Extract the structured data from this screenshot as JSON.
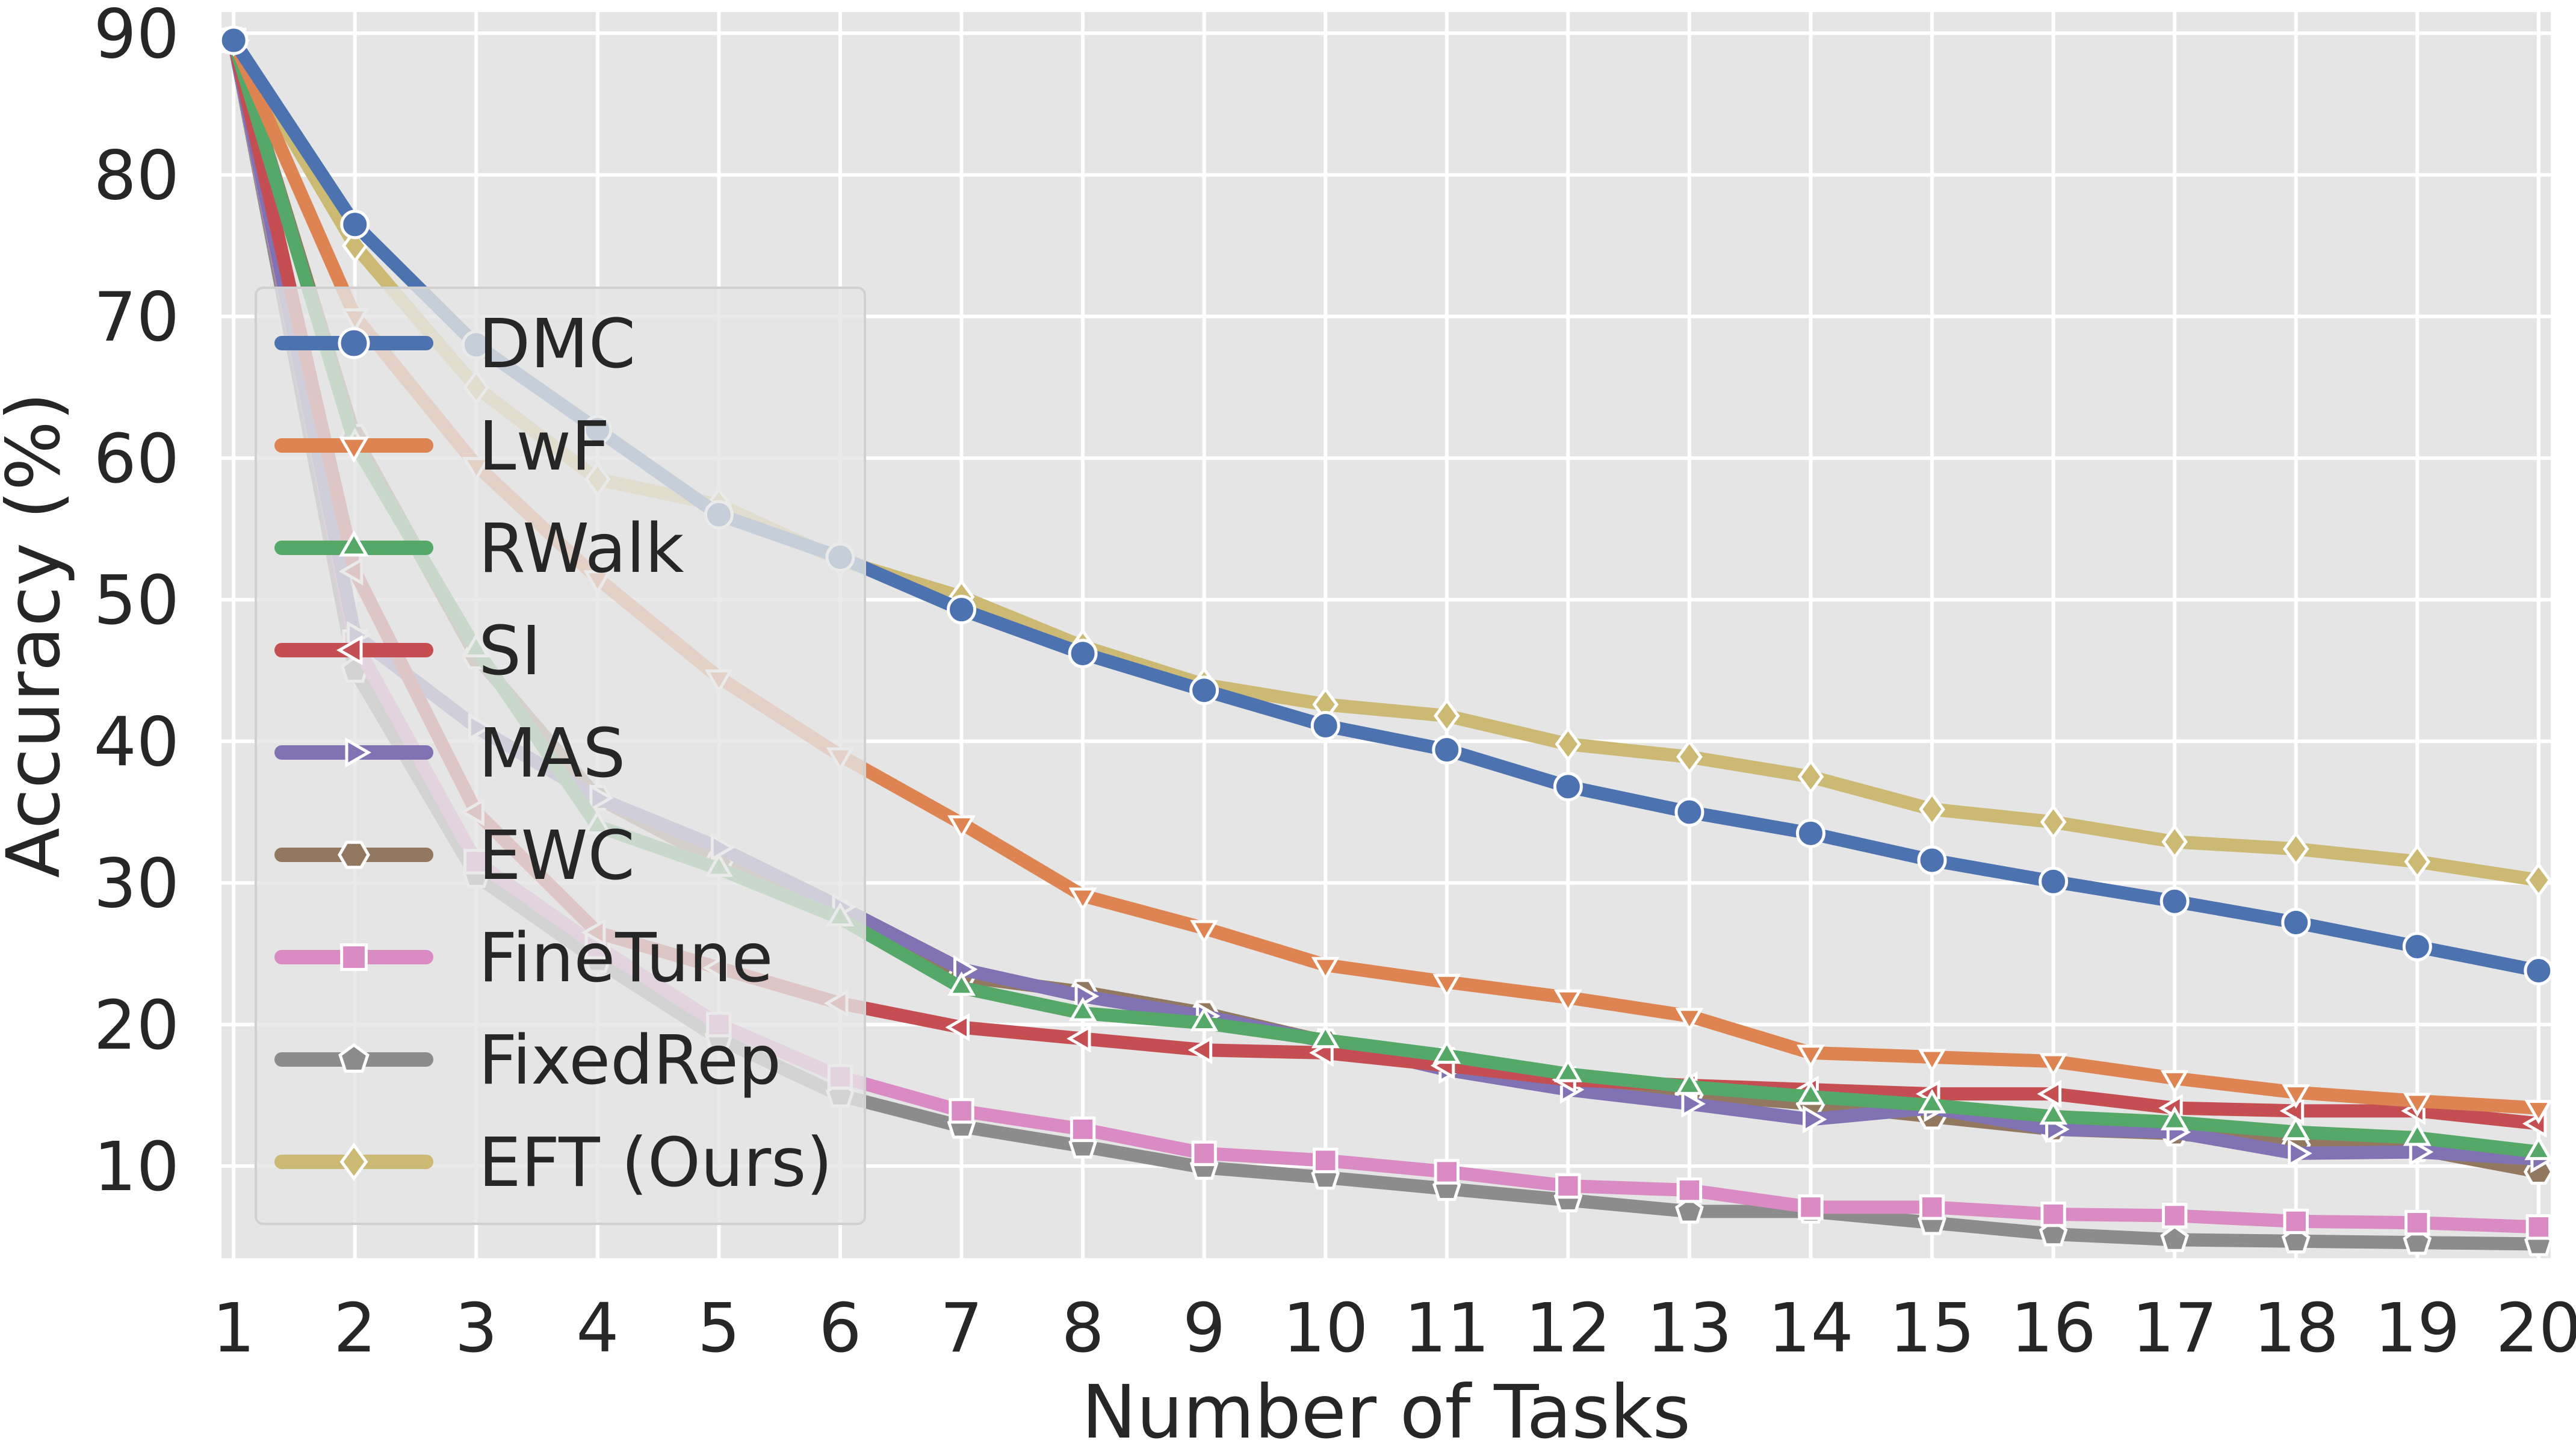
{
  "chart_data": {
    "type": "line",
    "title": "",
    "xlabel": "Number of Tasks",
    "ylabel": "Accuracy (%)",
    "x": [
      1,
      2,
      3,
      4,
      5,
      6,
      7,
      8,
      9,
      10,
      11,
      12,
      13,
      14,
      15,
      16,
      17,
      18,
      19,
      20
    ],
    "xlim": [
      0.9,
      20.1
    ],
    "ylim": [
      3.5,
      91.5
    ],
    "yticks": [
      10,
      20,
      30,
      40,
      50,
      60,
      70,
      80,
      90
    ],
    "grid": true,
    "legend_position": "left",
    "series": [
      {
        "name": "DMC",
        "color": "#4c72b0",
        "marker": "circle",
        "values": [
          89.5,
          76.5,
          68.0,
          62.0,
          56.0,
          53.0,
          49.3,
          46.2,
          43.6,
          41.1,
          39.4,
          36.8,
          35.0,
          33.5,
          31.6,
          30.1,
          28.7,
          27.2,
          25.5,
          23.8
        ]
      },
      {
        "name": "LwF",
        "color": "#dd8452",
        "marker": "triangle-down",
        "values": [
          89.5,
          70.0,
          59.5,
          51.5,
          44.5,
          39.0,
          34.2,
          29.1,
          26.8,
          24.2,
          23.0,
          21.9,
          20.6,
          18.0,
          17.7,
          17.4,
          16.2,
          15.2,
          14.6,
          14.1
        ]
      },
      {
        "name": "RWalk",
        "color": "#55a868",
        "marker": "triangle-up",
        "values": [
          89.5,
          61.0,
          46.5,
          34.0,
          31.0,
          27.5,
          22.6,
          20.8,
          20.1,
          18.9,
          17.8,
          16.5,
          15.6,
          14.9,
          14.3,
          13.5,
          13.1,
          12.4,
          12.0,
          11.0
        ]
      },
      {
        "name": "SI",
        "color": "#c44e52",
        "marker": "triangle-left",
        "values": [
          89.5,
          52.0,
          35.0,
          26.5,
          24.0,
          21.5,
          19.8,
          19.0,
          18.2,
          18.0,
          17.1,
          16.1,
          15.7,
          15.4,
          15.1,
          15.1,
          14.1,
          13.9,
          13.9,
          13.0
        ]
      },
      {
        "name": "MAS",
        "color": "#8172b3",
        "marker": "triangle-right",
        "values": [
          89.5,
          47.5,
          41.0,
          36.0,
          32.5,
          28.3,
          23.9,
          22.0,
          20.6,
          18.8,
          16.8,
          15.4,
          14.4,
          13.3,
          14.1,
          12.6,
          12.4,
          10.9,
          11.0,
          10.5
        ]
      },
      {
        "name": "EWC",
        "color": "#937860",
        "marker": "hexagon",
        "values": [
          89.5,
          61.5,
          46.0,
          36.0,
          31.5,
          27.9,
          23.4,
          22.3,
          20.8,
          18.8,
          17.5,
          16.1,
          15.1,
          14.4,
          13.5,
          12.6,
          12.3,
          11.5,
          11.2,
          9.6
        ]
      },
      {
        "name": "FineTune",
        "color": "#da8bc3",
        "marker": "square",
        "values": [
          89.5,
          47.0,
          31.5,
          25.5,
          20.0,
          16.3,
          13.9,
          12.6,
          10.9,
          10.4,
          9.6,
          8.6,
          8.3,
          7.1,
          7.1,
          6.6,
          6.5,
          6.1,
          6.0,
          5.7
        ]
      },
      {
        "name": "FixedRep",
        "color": "#8c8c8c",
        "marker": "pentagon",
        "values": [
          89.5,
          45.0,
          30.5,
          24.5,
          19.0,
          15.0,
          12.8,
          11.4,
          9.9,
          9.2,
          8.4,
          7.6,
          6.8,
          6.8,
          6.0,
          5.2,
          4.8,
          4.7,
          4.6,
          4.5
        ]
      },
      {
        "name": "EFT (Ours)",
        "color": "#ccb974",
        "marker": "diamond",
        "values": [
          89.5,
          75.0,
          65.0,
          58.5,
          56.7,
          52.8,
          50.2,
          46.7,
          44.0,
          42.6,
          41.8,
          39.8,
          38.9,
          37.5,
          35.2,
          34.3,
          32.9,
          32.4,
          31.5,
          30.2
        ]
      }
    ]
  }
}
